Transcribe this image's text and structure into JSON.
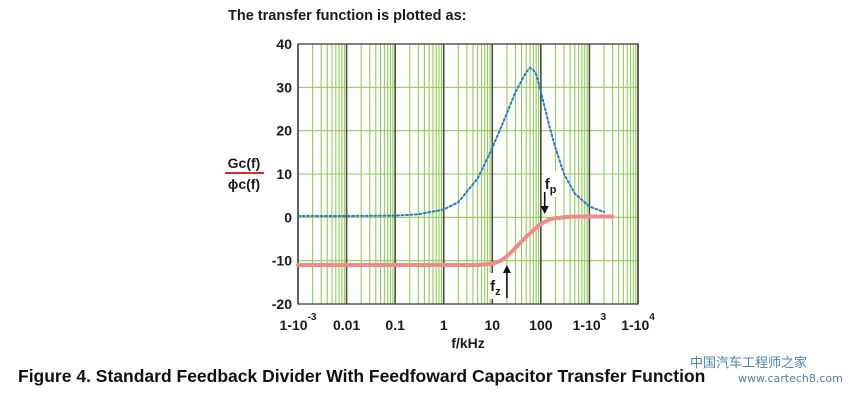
{
  "header": {
    "title": "The transfer function is plotted as:"
  },
  "caption": {
    "text": "Figure 4. Standard Feedback Divider With Feedfoward Capacitor Transfer Function"
  },
  "watermark": {
    "cn": "中国汽车工程师之家",
    "url": "www.cartech8.com"
  },
  "chart_data": {
    "type": "line",
    "xscale": "log",
    "xlabel": "f/kHz",
    "ylabel_numerator": "Gc(f)",
    "ylabel_denominator": "ϕc(f)",
    "xlim": [
      0.001,
      10000
    ],
    "ylim": [
      -20,
      40
    ],
    "yticks": [
      40,
      30,
      20,
      10,
      0,
      -10,
      -20
    ],
    "xticks": [
      {
        "value": 0.001,
        "base": "1-10",
        "exp": "-3"
      },
      {
        "value": 0.01,
        "base": "0.01",
        "exp": ""
      },
      {
        "value": 0.1,
        "base": "0.1",
        "exp": ""
      },
      {
        "value": 1,
        "base": "1",
        "exp": ""
      },
      {
        "value": 10,
        "base": "10",
        "exp": ""
      },
      {
        "value": 100,
        "base": "100",
        "exp": ""
      },
      {
        "value": 1000,
        "base": "1-10",
        "exp": "3"
      },
      {
        "value": 10000,
        "base": "1-10",
        "exp": "4"
      }
    ],
    "grid": true,
    "colors": {
      "gain": "#2b7bc4",
      "phase": "#f08a8a",
      "grid_minor": "#8fcd57",
      "grid_major": "#4a4a4a"
    },
    "series": [
      {
        "style": "dotted",
        "x": [
          0.001,
          0.01,
          0.1,
          0.3,
          1,
          2,
          5,
          10,
          20,
          30,
          50,
          60,
          70,
          80,
          100,
          150,
          200,
          300,
          500,
          1000,
          2000
        ],
        "y": [
          0.3,
          0.3,
          0.4,
          0.7,
          1.8,
          3.5,
          9.0,
          16.0,
          24.0,
          29.0,
          33.5,
          34.5,
          34.0,
          33.0,
          29.0,
          21.0,
          16.0,
          10.0,
          5.5,
          2.5,
          1.2
        ]
      },
      {
        "style": "solid",
        "x": [
          0.001,
          0.01,
          0.1,
          1,
          5,
          10,
          15,
          20,
          30,
          50,
          70,
          100,
          150,
          200,
          300,
          500,
          1000,
          2000,
          3000
        ],
        "y": [
          -11.0,
          -11.0,
          -11.0,
          -11.0,
          -11.0,
          -10.7,
          -10.0,
          -9.0,
          -7.0,
          -4.5,
          -3.0,
          -1.5,
          -0.5,
          -0.2,
          0.0,
          0.2,
          0.2,
          0.2,
          0.2
        ]
      }
    ],
    "annotations": [
      {
        "label": "f",
        "sub": "z",
        "arrow": "up"
      },
      {
        "label": "f",
        "sub": "p",
        "arrow": "down"
      }
    ]
  }
}
